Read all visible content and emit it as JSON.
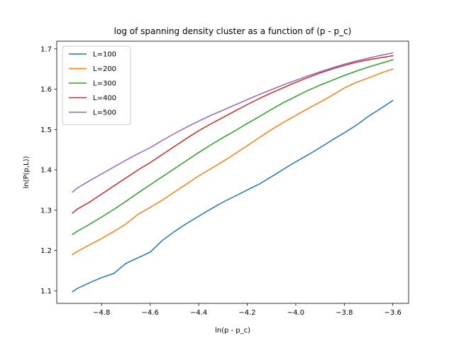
{
  "chart_data": {
    "type": "line",
    "title": "log of spanning density cluster as a function of (p - p_c)",
    "xlabel": "ln(p - p_c)",
    "ylabel": "ln(P(p,L))",
    "xlim": [
      -4.985,
      -3.535
    ],
    "ylim": [
      1.069,
      1.719
    ],
    "xticks": [
      -4.8,
      -4.6,
      -4.4,
      -4.2,
      -4.0,
      -3.8,
      -3.6
    ],
    "xtick_labels": [
      "−4.8",
      "−4.6",
      "−4.4",
      "−4.2",
      "−4.0",
      "−3.8",
      "−3.6"
    ],
    "yticks": [
      1.1,
      1.2,
      1.3,
      1.4,
      1.5,
      1.6,
      1.7
    ],
    "ytick_labels": [
      "1.1",
      "1.2",
      "1.3",
      "1.4",
      "1.5",
      "1.6",
      "1.7"
    ],
    "grid": false,
    "legend_position": "upper-left",
    "series": [
      {
        "name": "L=100",
        "color": "#1f77b4",
        "x": [
          -4.92,
          -4.9,
          -4.85,
          -4.8,
          -4.75,
          -4.7,
          -4.65,
          -4.6,
          -4.55,
          -4.5,
          -4.45,
          -4.4,
          -4.35,
          -4.3,
          -4.25,
          -4.2,
          -4.15,
          -4.1,
          -4.05,
          -4.0,
          -3.95,
          -3.9,
          -3.85,
          -3.8,
          -3.75,
          -3.7,
          -3.65,
          -3.6
        ],
        "y": [
          1.098,
          1.106,
          1.12,
          1.133,
          1.143,
          1.168,
          1.182,
          1.196,
          1.225,
          1.247,
          1.267,
          1.285,
          1.303,
          1.32,
          1.335,
          1.35,
          1.365,
          1.383,
          1.402,
          1.42,
          1.437,
          1.455,
          1.474,
          1.492,
          1.511,
          1.533,
          1.552,
          1.572
        ]
      },
      {
        "name": "L=200",
        "color": "#ff7f0e",
        "x": [
          -4.92,
          -4.9,
          -4.85,
          -4.8,
          -4.75,
          -4.7,
          -4.65,
          -4.6,
          -4.55,
          -4.5,
          -4.45,
          -4.4,
          -4.35,
          -4.3,
          -4.25,
          -4.2,
          -4.15,
          -4.1,
          -4.05,
          -4.0,
          -3.95,
          -3.9,
          -3.85,
          -3.8,
          -3.75,
          -3.7,
          -3.65,
          -3.6
        ],
        "y": [
          1.19,
          1.198,
          1.214,
          1.23,
          1.247,
          1.266,
          1.29,
          1.307,
          1.325,
          1.345,
          1.365,
          1.385,
          1.403,
          1.421,
          1.44,
          1.46,
          1.48,
          1.5,
          1.518,
          1.535,
          1.552,
          1.568,
          1.585,
          1.603,
          1.617,
          1.628,
          1.64,
          1.65
        ]
      },
      {
        "name": "L=300",
        "color": "#2ca02c",
        "x": [
          -4.92,
          -4.9,
          -4.85,
          -4.8,
          -4.75,
          -4.7,
          -4.65,
          -4.6,
          -4.55,
          -4.5,
          -4.45,
          -4.4,
          -4.35,
          -4.3,
          -4.25,
          -4.2,
          -4.15,
          -4.1,
          -4.05,
          -4.0,
          -3.95,
          -3.9,
          -3.85,
          -3.8,
          -3.75,
          -3.7,
          -3.65,
          -3.6
        ],
        "y": [
          1.24,
          1.248,
          1.265,
          1.283,
          1.302,
          1.322,
          1.343,
          1.363,
          1.383,
          1.403,
          1.423,
          1.443,
          1.462,
          1.48,
          1.497,
          1.515,
          1.532,
          1.55,
          1.567,
          1.582,
          1.597,
          1.61,
          1.622,
          1.634,
          1.645,
          1.655,
          1.664,
          1.673
        ]
      },
      {
        "name": "L=400",
        "color": "#d62728",
        "x": [
          -4.92,
          -4.9,
          -4.85,
          -4.8,
          -4.75,
          -4.7,
          -4.65,
          -4.6,
          -4.55,
          -4.5,
          -4.45,
          -4.4,
          -4.35,
          -4.3,
          -4.25,
          -4.2,
          -4.15,
          -4.1,
          -4.05,
          -4.0,
          -3.95,
          -3.9,
          -3.85,
          -3.8,
          -3.75,
          -3.7,
          -3.65,
          -3.6
        ],
        "y": [
          1.293,
          1.303,
          1.32,
          1.34,
          1.36,
          1.38,
          1.4,
          1.418,
          1.438,
          1.458,
          1.478,
          1.497,
          1.514,
          1.53,
          1.546,
          1.562,
          1.577,
          1.591,
          1.604,
          1.617,
          1.629,
          1.64,
          1.65,
          1.659,
          1.667,
          1.673,
          1.678,
          1.683
        ]
      },
      {
        "name": "L=500",
        "color": "#9467bd",
        "x": [
          -4.92,
          -4.9,
          -4.85,
          -4.8,
          -4.75,
          -4.7,
          -4.65,
          -4.6,
          -4.55,
          -4.5,
          -4.45,
          -4.4,
          -4.35,
          -4.3,
          -4.25,
          -4.2,
          -4.15,
          -4.1,
          -4.05,
          -4.0,
          -3.95,
          -3.9,
          -3.85,
          -3.8,
          -3.75,
          -3.7,
          -3.65,
          -3.6
        ],
        "y": [
          1.345,
          1.355,
          1.373,
          1.39,
          1.407,
          1.424,
          1.44,
          1.455,
          1.473,
          1.49,
          1.506,
          1.521,
          1.535,
          1.548,
          1.561,
          1.574,
          1.587,
          1.599,
          1.611,
          1.622,
          1.633,
          1.643,
          1.653,
          1.662,
          1.67,
          1.677,
          1.684,
          1.69
        ]
      }
    ]
  }
}
